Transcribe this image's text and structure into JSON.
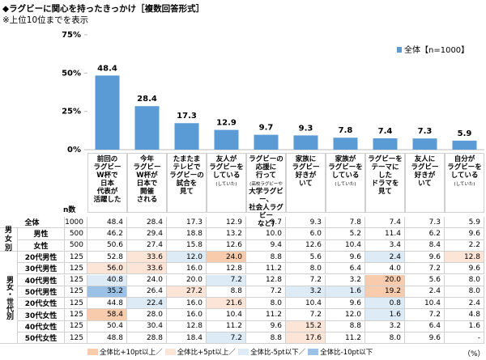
{
  "header": {
    "title": "◆ラグビーに関心を持ったきっかけ［複数回答形式］",
    "note": "※上位10位までを表示"
  },
  "chart_data": {
    "type": "bar",
    "categories": [
      "前回の\nラグビー\nW杯で\n日本\n代表が\n活躍した",
      "今年\nラグビー\nW杯が\n日本で\n開催\nされる",
      "たまたま\nテレビで\nラグビーの\n試合を\n見て",
      "友人が\nラグビーを\nしている\n(していた)",
      "ラグビーの\n応援に\n行って\n(高校ラグビーや\n大学ラグビー、\n社会人ラグビー\nなど)",
      "家族に\nラグビー\n好きが\nいて",
      "家族が\nラグビーを\nしている\n(していた)",
      "ラグビーを\nテーマに\nした\nドラマを\n見て",
      "友人に\nラグビー\n好きが\nいて",
      "自分が\nラグビーを\nしている\n(していた)"
    ],
    "series": [
      {
        "name": "全体【n=1000】",
        "color": "#5B9BD5",
        "values": [
          48.4,
          28.4,
          17.3,
          12.9,
          9.7,
          9.3,
          7.8,
          7.4,
          7.3,
          5.9
        ]
      }
    ],
    "ylim": [
      0,
      75
    ],
    "yticks": [
      {
        "value": 0,
        "label": "0%"
      },
      {
        "value": 25,
        "label": "25%"
      },
      {
        "value": 50,
        "label": "50%"
      },
      {
        "value": 75,
        "label": "75%"
      }
    ]
  },
  "table": {
    "n_header": "n数",
    "total": {
      "label": "全体",
      "n": "1000",
      "cells": [
        "48.4",
        "28.4",
        "17.3",
        "12.9",
        "9.7",
        "9.3",
        "7.8",
        "7.4",
        "7.3",
        "5.9"
      ],
      "highlight": [
        null,
        null,
        null,
        null,
        null,
        null,
        null,
        null,
        null,
        null
      ]
    },
    "groups": [
      {
        "label": "男女別",
        "rows": [
          {
            "label": "男性",
            "n": "500",
            "cells": [
              "46.2",
              "29.4",
              "18.8",
              "13.2",
              "10.0",
              "6.0",
              "5.2",
              "11.4",
              "6.2",
              "9.6"
            ],
            "highlight": [
              null,
              null,
              null,
              null,
              null,
              null,
              null,
              null,
              null,
              null
            ]
          },
          {
            "label": "女性",
            "n": "500",
            "cells": [
              "50.6",
              "27.4",
              "15.8",
              "12.6",
              "9.4",
              "12.6",
              "10.4",
              "3.4",
              "8.4",
              "2.2"
            ],
            "highlight": [
              null,
              null,
              null,
              null,
              null,
              null,
              null,
              null,
              null,
              null
            ]
          }
        ]
      },
      {
        "label": "男女・世代別",
        "rows": [
          {
            "label": "20代男性",
            "n": "125",
            "cells": [
              "52.8",
              "33.6",
              "12.0",
              "24.0",
              "8.8",
              "5.6",
              "9.6",
              "2.4",
              "9.6",
              "12.8"
            ],
            "highlight": [
              null,
              1,
              2,
              0,
              null,
              null,
              null,
              2,
              null,
              1
            ]
          },
          {
            "label": "30代男性",
            "n": "125",
            "cells": [
              "56.0",
              "33.6",
              "16.0",
              "12.8",
              "11.2",
              "8.0",
              "6.4",
              "4.0",
              "7.2",
              "9.6"
            ],
            "highlight": [
              1,
              1,
              null,
              null,
              null,
              null,
              null,
              null,
              null,
              null
            ]
          },
          {
            "label": "40代男性",
            "n": "125",
            "cells": [
              "40.8",
              "24.0",
              "20.0",
              "7.2",
              "12.8",
              "7.2",
              "3.2",
              "20.0",
              "5.6",
              "8.0"
            ],
            "highlight": [
              2,
              null,
              null,
              2,
              null,
              null,
              null,
              0,
              null,
              null
            ]
          },
          {
            "label": "50代男性",
            "n": "125",
            "cells": [
              "35.2",
              "26.4",
              "27.2",
              "8.8",
              "7.2",
              "3.2",
              "1.6",
              "19.2",
              "2.4",
              "8.0"
            ],
            "highlight": [
              3,
              null,
              1,
              null,
              null,
              2,
              2,
              0,
              null,
              null
            ]
          },
          {
            "label": "20代女性",
            "n": "125",
            "cells": [
              "44.8",
              "22.4",
              "16.0",
              "21.6",
              "8.0",
              "10.4",
              "9.6",
              "0.8",
              "10.4",
              "2.4"
            ],
            "highlight": [
              null,
              2,
              null,
              1,
              null,
              null,
              null,
              2,
              null,
              null
            ]
          },
          {
            "label": "30代女性",
            "n": "125",
            "cells": [
              "58.4",
              "28.0",
              "16.0",
              "10.4",
              "11.2",
              "7.2",
              "12.0",
              "1.6",
              "7.2",
              "4.8"
            ],
            "highlight": [
              0,
              null,
              null,
              null,
              null,
              null,
              null,
              2,
              null,
              null
            ]
          },
          {
            "label": "40代女性",
            "n": "125",
            "cells": [
              "50.4",
              "30.4",
              "12.8",
              "11.2",
              "9.6",
              "15.2",
              "8.8",
              "3.2",
              "6.4",
              "1.6"
            ],
            "highlight": [
              null,
              null,
              null,
              null,
              null,
              1,
              null,
              null,
              null,
              null
            ]
          },
          {
            "label": "50代女性",
            "n": "125",
            "cells": [
              "48.8",
              "28.8",
              "18.4",
              "7.2",
              "8.8",
              "17.6",
              "11.2",
              "8.0",
              "9.6",
              "-"
            ],
            "highlight": [
              null,
              null,
              null,
              2,
              null,
              1,
              null,
              null,
              null,
              null
            ]
          }
        ]
      }
    ]
  },
  "legend": [
    {
      "label": "全体比+10pt以上／",
      "color": "#F8CBAD"
    },
    {
      "label": "全体比+5pt以上／",
      "color": "#FCE4D6"
    },
    {
      "label": "全体比-5pt以下／",
      "color": "#DDEBF7"
    },
    {
      "label": "全体比-10pt以下",
      "color": "#9BC2E6"
    }
  ],
  "unit": "（%）"
}
